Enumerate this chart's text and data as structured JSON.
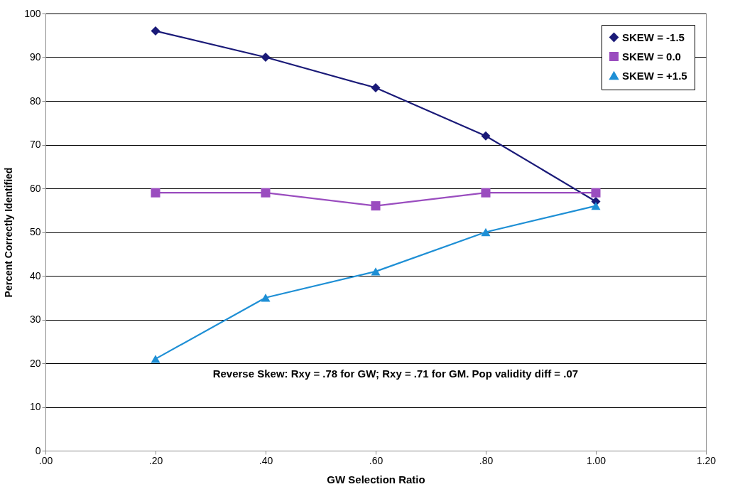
{
  "chart_data": {
    "type": "line",
    "xlabel": "GW  Selection Ratio",
    "ylabel": "Percent Correctly Identified",
    "x": [
      0.2,
      0.4,
      0.6,
      0.8,
      1.0
    ],
    "series": [
      {
        "name": "SKEW = -1.5",
        "color": "#1a1a78",
        "marker": "diamond",
        "values": [
          96,
          90,
          83,
          72,
          57
        ]
      },
      {
        "name": "SKEW = 0.0",
        "color": "#9a4dbf",
        "marker": "square",
        "values": [
          59,
          59,
          56,
          59,
          59
        ]
      },
      {
        "name": "SKEW = +1.5",
        "color": "#1e8fd5",
        "marker": "triangle",
        "values": [
          21,
          35,
          41,
          50,
          56
        ]
      }
    ],
    "xlim": [
      0,
      1.2
    ],
    "xticks": [
      {
        "value": 0,
        "label": ".00"
      },
      {
        "value": 0.2,
        "label": ".20"
      },
      {
        "value": 0.4,
        "label": ".40"
      },
      {
        "value": 0.6,
        "label": ".60"
      },
      {
        "value": 0.8,
        "label": ".80"
      },
      {
        "value": 1.0,
        "label": "1.00"
      },
      {
        "value": 1.2,
        "label": "1.20"
      }
    ],
    "ylim": [
      0,
      100
    ],
    "yticks": [
      0,
      10,
      20,
      30,
      40,
      50,
      60,
      70,
      80,
      90,
      100
    ],
    "grid": "y",
    "legend": "top right",
    "annotations": [
      "Reverse Skew: Rxy = .78 for GW; Rxy = .71 for GM. Pop validity diff = .07"
    ]
  }
}
